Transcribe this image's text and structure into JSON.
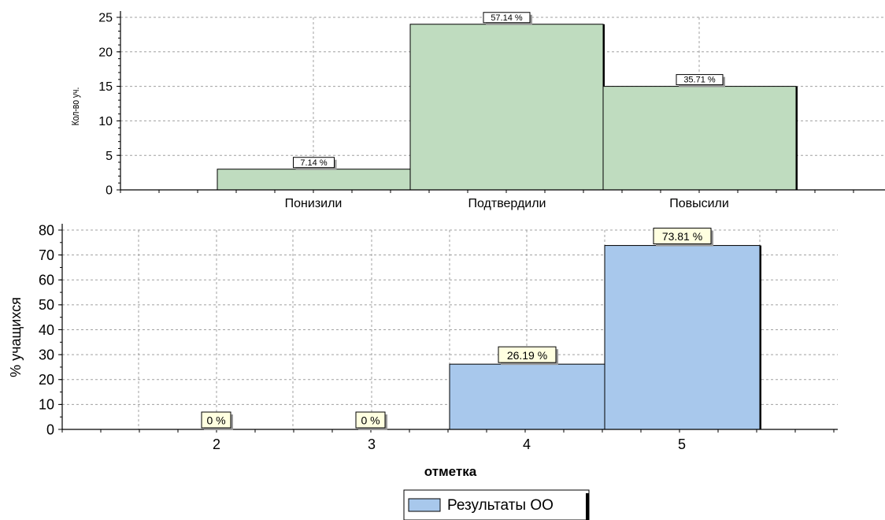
{
  "chart_data": [
    {
      "type": "bar",
      "categories": [
        "Понизили",
        "Подтвердили",
        "Повысили"
      ],
      "values": [
        3,
        24,
        15
      ],
      "data_labels": [
        "7.14 %",
        "57.14 %",
        "35.71 %"
      ],
      "ylabel": "Кол-во уч.",
      "xlabel": "",
      "ylim": [
        0,
        25
      ],
      "yticks": [
        "0",
        "5",
        "10",
        "15",
        "20",
        "25"
      ],
      "grid": true,
      "bar_color": "#bfdcbf",
      "label_box_color": "#ffffff"
    },
    {
      "type": "bar",
      "categories": [
        "2",
        "3",
        "4",
        "5"
      ],
      "values": [
        0,
        0,
        26.19,
        73.81
      ],
      "data_labels": [
        "0 %",
        "0 %",
        "26.19 %",
        "73.81 %"
      ],
      "ylabel": "% учащихся",
      "xlabel": "отметка",
      "ylim": [
        0,
        80
      ],
      "yticks": [
        "0",
        "10",
        "20",
        "30",
        "40",
        "50",
        "60",
        "70",
        "80"
      ],
      "grid": true,
      "bar_color": "#a8c8ec",
      "label_box_color": "#ffffe0",
      "legend": {
        "label": "Результаты ОО",
        "position": "bottom"
      }
    }
  ]
}
